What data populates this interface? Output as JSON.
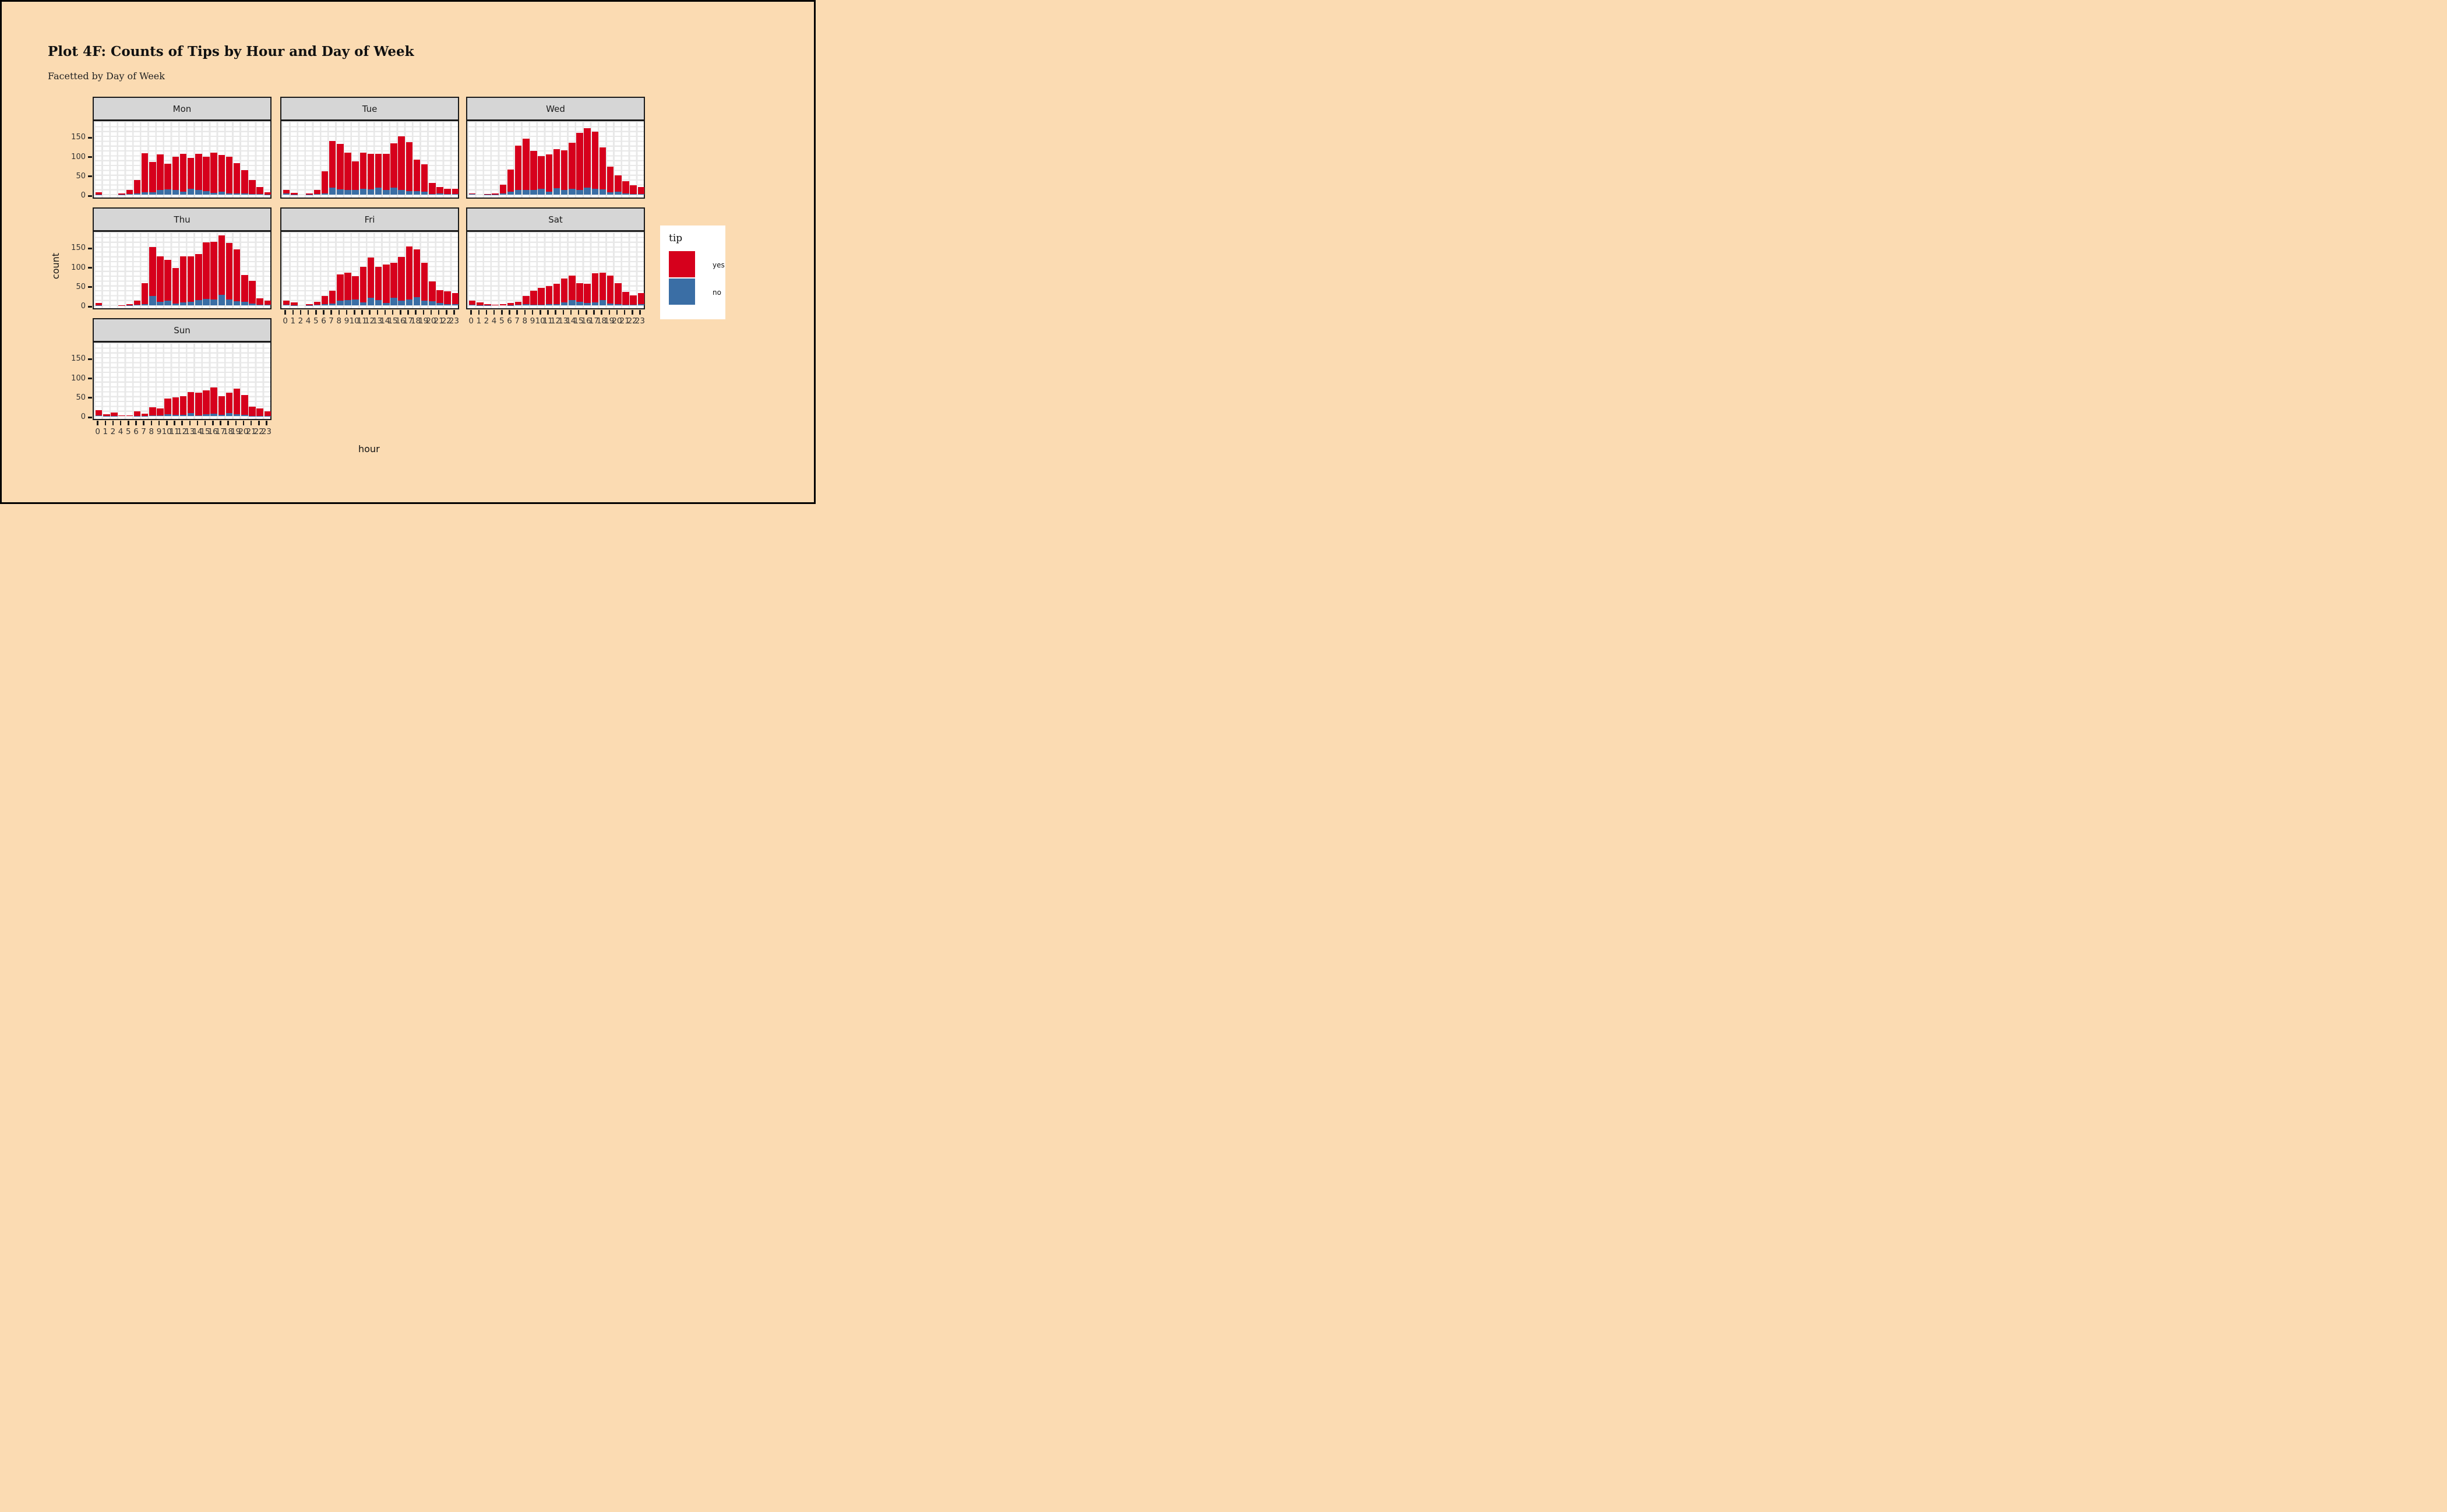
{
  "header": {
    "title": "Plot 4F: Counts of Tips by Hour and Day of Week",
    "subtitle": "Facetted by Day of Week"
  },
  "axes": {
    "x_label": "hour",
    "y_label": "count",
    "y_ticks": [
      "0",
      "50",
      "100",
      "150"
    ]
  },
  "legend": {
    "title": "tip",
    "items": [
      {
        "label": "yes",
        "color": "#D6001C"
      },
      {
        "label": "no",
        "color": "#3A6EA5"
      }
    ]
  },
  "colors": {
    "background": "#FBDBB2",
    "panel": "#FFFFFF",
    "grid": "#E8E8E8",
    "strip": "#D6D6D6",
    "frame": "#1A1A1A",
    "yes": "#D6001C",
    "no": "#3A6EA5"
  },
  "chart_data": {
    "type": "bar",
    "stacked": true,
    "grid": "graph-paper",
    "legend_position": "right",
    "ylim": [
      0,
      195
    ],
    "categories": [
      "0",
      "1",
      "2",
      "4",
      "5",
      "6",
      "7",
      "8",
      "9",
      "10",
      "11",
      "12",
      "13",
      "14",
      "15",
      "16",
      "17",
      "18",
      "19",
      "20",
      "21",
      "22",
      "23"
    ],
    "facets": [
      {
        "label": "Mon",
        "yes": [
          5,
          0,
          0,
          2,
          10,
          35,
          100,
          78,
          92,
          66,
          86,
          97,
          79,
          94,
          89,
          103,
          95,
          94,
          78,
          60,
          36,
          18,
          5
        ],
        "no": [
          1,
          0,
          0,
          1,
          2,
          3,
          7,
          7,
          12,
          14,
          12,
          8,
          16,
          12,
          9,
          5,
          8,
          4,
          3,
          3,
          2,
          2,
          1
        ]
      },
      {
        "label": "Tue",
        "yes": [
          9,
          4,
          0,
          3,
          11,
          56,
          120,
          117,
          96,
          74,
          92,
          92,
          87,
          92,
          115,
          139,
          126,
          81,
          70,
          28,
          17,
          14,
          13
        ],
        "no": [
          3,
          1,
          0,
          1,
          2,
          4,
          18,
          14,
          13,
          12,
          16,
          14,
          18,
          13,
          18,
          12,
          10,
          9,
          8,
          2,
          3,
          2,
          2
        ]
      },
      {
        "label": "Wed",
        "yes": [
          2,
          0,
          1,
          2,
          23,
          57,
          114,
          133,
          100,
          85,
          96,
          100,
          102,
          119,
          147,
          154,
          148,
          108,
          67,
          42,
          32,
          23,
          18
        ],
        "no": [
          2,
          0,
          1,
          1,
          3,
          8,
          13,
          12,
          13,
          15,
          8,
          17,
          13,
          15,
          13,
          18,
          15,
          14,
          6,
          8,
          3,
          2,
          2
        ]
      },
      {
        "label": "Thu",
        "yes": [
          5,
          0,
          0,
          1,
          2,
          10,
          54,
          125,
          117,
          105,
          92,
          118,
          117,
          118,
          146,
          149,
          153,
          146,
          133,
          69,
          59,
          17,
          11
        ],
        "no": [
          1,
          0,
          0,
          0,
          1,
          2,
          4,
          25,
          10,
          13,
          5,
          8,
          10,
          14,
          17,
          15,
          28,
          15,
          11,
          9,
          5,
          2,
          2
        ]
      },
      {
        "label": "Fri",
        "yes": [
          10,
          7,
          0,
          2,
          8,
          22,
          33,
          67,
          71,
          61,
          92,
          104,
          86,
          99,
          90,
          112,
          137,
          124,
          97,
          51,
          34,
          32,
          29
        ],
        "no": [
          2,
          1,
          0,
          1,
          2,
          3,
          5,
          13,
          14,
          15,
          8,
          20,
          14,
          7,
          20,
          13,
          15,
          21,
          13,
          11,
          6,
          4,
          3
        ]
      },
      {
        "label": "Sat",
        "yes": [
          10,
          7,
          3,
          2,
          3,
          5,
          8,
          22,
          36,
          43,
          47,
          52,
          62,
          63,
          47,
          49,
          75,
          71,
          72,
          53,
          33,
          24,
          29
        ],
        "no": [
          2,
          1,
          1,
          0,
          0,
          1,
          2,
          3,
          2,
          2,
          3,
          4,
          8,
          14,
          10,
          7,
          8,
          14,
          5,
          4,
          2,
          2,
          3
        ]
      },
      {
        "label": "Sun",
        "yes": [
          13,
          4,
          8,
          2,
          2,
          12,
          5,
          21,
          18,
          40,
          46,
          47,
          54,
          58,
          61,
          68,
          47,
          53,
          66,
          51,
          24,
          19,
          11
        ],
        "no": [
          2,
          1,
          1,
          0,
          0,
          1,
          1,
          2,
          2,
          5,
          3,
          4,
          8,
          2,
          5,
          6,
          4,
          8,
          5,
          3,
          1,
          1,
          1
        ]
      }
    ]
  }
}
